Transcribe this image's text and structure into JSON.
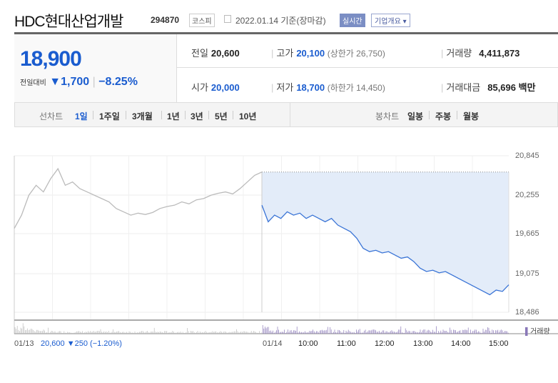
{
  "header": {
    "name": "HDC현대산업개발",
    "code": "294870",
    "market": "코스피",
    "date": "2022.01.14 기준(장마감)",
    "realtime": "실시간",
    "overview": "기업개요 ▾"
  },
  "quote": {
    "price": "18,900",
    "change_label": "전일대비",
    "change": "▼1,700",
    "change_pct": "−8.25%",
    "prev_label": "전일",
    "prev": "20,600",
    "open_label": "시가",
    "open": "20,000",
    "high_label": "고가",
    "high": "20,100",
    "upper_limit": "(상한가 26,750)",
    "low_label": "저가",
    "low": "18,700",
    "lower_limit": "(하한가 14,450)",
    "volume_label": "거래량",
    "volume": "4,411,873",
    "amount_label": "거래대금",
    "amount": "85,696 백만"
  },
  "toolbar": {
    "line_label": "선차트",
    "periods": [
      "1일",
      "1주일",
      "3개월",
      "1년",
      "3년",
      "5년",
      "10년"
    ],
    "candle_label": "봉차트",
    "candles": [
      "일봉",
      "주봉",
      "월봉"
    ]
  },
  "chart_data": {
    "type": "line",
    "ylim": [
      18486,
      20845
    ],
    "yticks": [
      "20,845",
      "20,255",
      "19,665",
      "19,075",
      "18,486"
    ],
    "prev_close": 20600,
    "prev_day": [
      19750,
      19950,
      20250,
      20400,
      20300,
      20500,
      20650,
      20400,
      20450,
      20350,
      20300,
      20250,
      20200,
      20150,
      20050,
      20000,
      19950,
      19980,
      19960,
      19990,
      20050,
      20080,
      20100,
      20150,
      20120,
      20180,
      20200,
      20250,
      20280,
      20300,
      20270,
      20350,
      20450,
      20550,
      20600
    ],
    "today": [
      20100,
      19850,
      19950,
      19900,
      20000,
      19950,
      19980,
      19900,
      19950,
      19900,
      19850,
      19900,
      19800,
      19750,
      19700,
      19600,
      19450,
      19400,
      19420,
      19380,
      19400,
      19350,
      19300,
      19320,
      19250,
      19150,
      19100,
      19120,
      19080,
      19100,
      19050,
      19000,
      18950,
      18900,
      18850,
      18800,
      18750,
      18820,
      18800,
      18900
    ],
    "volume_label": "거래량",
    "xlabels": [
      "01/14",
      "10:00",
      "11:00",
      "12:00",
      "13:00",
      "14:00",
      "15:00"
    ],
    "prev_info": {
      "date": "01/13",
      "price": "20,600",
      "change": "▼250",
      "pct": "(−1.20%)"
    }
  },
  "colors": {
    "accent": "#1a5ccf",
    "fill": "#e3ecf9",
    "prev_line": "#bbbbbb",
    "volume": "#8a78b8"
  }
}
